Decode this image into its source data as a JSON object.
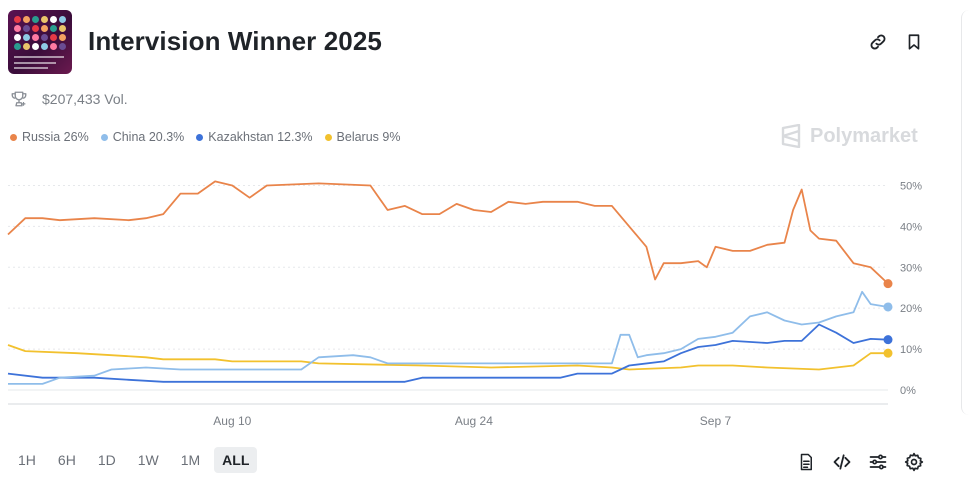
{
  "header": {
    "title": "Intervision Winner 2025",
    "volume": "$207,433 Vol."
  },
  "brand": "Polymarket",
  "legend": [
    {
      "label": "Russia 26%",
      "color": "#e9844a"
    },
    {
      "label": "China 20.3%",
      "color": "#8fbdea"
    },
    {
      "label": "Kazakhstan 12.3%",
      "color": "#3d72d9"
    },
    {
      "label": "Belarus 9%",
      "color": "#f2c12e"
    }
  ],
  "ranges": [
    {
      "label": "1H",
      "active": false
    },
    {
      "label": "6H",
      "active": false
    },
    {
      "label": "1D",
      "active": false
    },
    {
      "label": "1W",
      "active": false
    },
    {
      "label": "1M",
      "active": false
    },
    {
      "label": "ALL",
      "active": true
    }
  ],
  "chart_data": {
    "type": "line",
    "x_start": "2025-07-28",
    "x_end": "2025-09-17",
    "ylim": [
      0,
      55
    ],
    "yticks": [
      0,
      10,
      20,
      30,
      40,
      50
    ],
    "ytick_labels": [
      "0%",
      "10%",
      "20%",
      "30%",
      "40%",
      "50%"
    ],
    "xticks": [
      {
        "date": "2025-08-10",
        "label": "Aug 10"
      },
      {
        "date": "2025-08-24",
        "label": "Aug 24"
      },
      {
        "date": "2025-09-07",
        "label": "Sep 7"
      }
    ],
    "grid": true,
    "legend": "top-left",
    "series": [
      {
        "name": "Russia",
        "color": "#e9844a",
        "points": [
          [
            "2025-07-28",
            38
          ],
          [
            "2025-07-29",
            42
          ],
          [
            "2025-07-30",
            42
          ],
          [
            "2025-07-31",
            41.5
          ],
          [
            "2025-08-02",
            42
          ],
          [
            "2025-08-04",
            41.5
          ],
          [
            "2025-08-05",
            42
          ],
          [
            "2025-08-06",
            43
          ],
          [
            "2025-08-07",
            48
          ],
          [
            "2025-08-08",
            48
          ],
          [
            "2025-08-09",
            51
          ],
          [
            "2025-08-10",
            50
          ],
          [
            "2025-08-11",
            47
          ],
          [
            "2025-08-12",
            50
          ],
          [
            "2025-08-15",
            50.5
          ],
          [
            "2025-08-18",
            50
          ],
          [
            "2025-08-19",
            44
          ],
          [
            "2025-08-20",
            45
          ],
          [
            "2025-08-21",
            43
          ],
          [
            "2025-08-22",
            43
          ],
          [
            "2025-08-23",
            45.5
          ],
          [
            "2025-08-24",
            44
          ],
          [
            "2025-08-25",
            43.5
          ],
          [
            "2025-08-26",
            46
          ],
          [
            "2025-08-27",
            45.5
          ],
          [
            "2025-08-28",
            46
          ],
          [
            "2025-08-30",
            46
          ],
          [
            "2025-08-31",
            45
          ],
          [
            "2025-09-01",
            45
          ],
          [
            "2025-09-02",
            40
          ],
          [
            "2025-09-03",
            35
          ],
          [
            "2025-09-03T12:00",
            27
          ],
          [
            "2025-09-04",
            31
          ],
          [
            "2025-09-05",
            31
          ],
          [
            "2025-09-06",
            31.5
          ],
          [
            "2025-09-06T12:00",
            30
          ],
          [
            "2025-09-07",
            35
          ],
          [
            "2025-09-08",
            34
          ],
          [
            "2025-09-09",
            34
          ],
          [
            "2025-09-10",
            35.5
          ],
          [
            "2025-09-11",
            36
          ],
          [
            "2025-09-11T12:00",
            44
          ],
          [
            "2025-09-12",
            49
          ],
          [
            "2025-09-12T12:00",
            39
          ],
          [
            "2025-09-13",
            37
          ],
          [
            "2025-09-14",
            36.5
          ],
          [
            "2025-09-15",
            31
          ],
          [
            "2025-09-16",
            30
          ],
          [
            "2025-09-17",
            26
          ]
        ]
      },
      {
        "name": "China",
        "color": "#8fbdea",
        "points": [
          [
            "2025-07-28",
            1.5
          ],
          [
            "2025-07-30",
            1.5
          ],
          [
            "2025-07-31",
            3
          ],
          [
            "2025-08-02",
            3.5
          ],
          [
            "2025-08-03",
            5
          ],
          [
            "2025-08-05",
            5.5
          ],
          [
            "2025-08-07",
            5
          ],
          [
            "2025-08-09",
            5
          ],
          [
            "2025-08-12",
            5
          ],
          [
            "2025-08-14",
            5
          ],
          [
            "2025-08-15",
            8
          ],
          [
            "2025-08-17",
            8.5
          ],
          [
            "2025-08-18",
            8
          ],
          [
            "2025-08-19",
            6.5
          ],
          [
            "2025-08-26",
            6.5
          ],
          [
            "2025-09-01",
            6.5
          ],
          [
            "2025-09-01T12:00",
            13.5
          ],
          [
            "2025-09-02",
            13.5
          ],
          [
            "2025-09-02T12:00",
            8
          ],
          [
            "2025-09-03",
            8.5
          ],
          [
            "2025-09-04",
            9
          ],
          [
            "2025-09-05",
            10
          ],
          [
            "2025-09-06",
            12.5
          ],
          [
            "2025-09-07",
            13
          ],
          [
            "2025-09-08",
            14
          ],
          [
            "2025-09-09",
            18
          ],
          [
            "2025-09-10",
            19
          ],
          [
            "2025-09-11",
            17
          ],
          [
            "2025-09-12",
            16
          ],
          [
            "2025-09-13",
            16.5
          ],
          [
            "2025-09-14",
            18
          ],
          [
            "2025-09-15",
            19
          ],
          [
            "2025-09-15T12:00",
            24
          ],
          [
            "2025-09-16",
            21
          ],
          [
            "2025-09-17",
            20.3
          ]
        ]
      },
      {
        "name": "Kazakhstan",
        "color": "#3d72d9",
        "points": [
          [
            "2025-07-28",
            4
          ],
          [
            "2025-07-30",
            3
          ],
          [
            "2025-08-02",
            3
          ],
          [
            "2025-08-04",
            2.5
          ],
          [
            "2025-08-06",
            2
          ],
          [
            "2025-08-15",
            2
          ],
          [
            "2025-08-20",
            2
          ],
          [
            "2025-08-21",
            3
          ],
          [
            "2025-08-29",
            3
          ],
          [
            "2025-08-30",
            4
          ],
          [
            "2025-09-01",
            4
          ],
          [
            "2025-09-02",
            6
          ],
          [
            "2025-09-04",
            7
          ],
          [
            "2025-09-05",
            9
          ],
          [
            "2025-09-06",
            10.5
          ],
          [
            "2025-09-07",
            11
          ],
          [
            "2025-09-08",
            12
          ],
          [
            "2025-09-10",
            11.5
          ],
          [
            "2025-09-11",
            12
          ],
          [
            "2025-09-12",
            12
          ],
          [
            "2025-09-13",
            16
          ],
          [
            "2025-09-14",
            14
          ],
          [
            "2025-09-15",
            11.5
          ],
          [
            "2025-09-16",
            12.5
          ],
          [
            "2025-09-17",
            12.3
          ]
        ]
      },
      {
        "name": "Belarus",
        "color": "#f2c12e",
        "points": [
          [
            "2025-07-28",
            11
          ],
          [
            "2025-07-29",
            9.5
          ],
          [
            "2025-08-01",
            9
          ],
          [
            "2025-08-03",
            8.5
          ],
          [
            "2025-08-05",
            8
          ],
          [
            "2025-08-06",
            7.5
          ],
          [
            "2025-08-09",
            7.5
          ],
          [
            "2025-08-10",
            7
          ],
          [
            "2025-08-14",
            7
          ],
          [
            "2025-08-15",
            6.5
          ],
          [
            "2025-08-21",
            6
          ],
          [
            "2025-08-25",
            5.5
          ],
          [
            "2025-08-30",
            6
          ],
          [
            "2025-09-01",
            5.5
          ],
          [
            "2025-09-02",
            5
          ],
          [
            "2025-09-05",
            5.5
          ],
          [
            "2025-09-06",
            6
          ],
          [
            "2025-09-08",
            6
          ],
          [
            "2025-09-10",
            5.5
          ],
          [
            "2025-09-13",
            5
          ],
          [
            "2025-09-15",
            6
          ],
          [
            "2025-09-16",
            9
          ],
          [
            "2025-09-17",
            9
          ]
        ]
      }
    ]
  }
}
